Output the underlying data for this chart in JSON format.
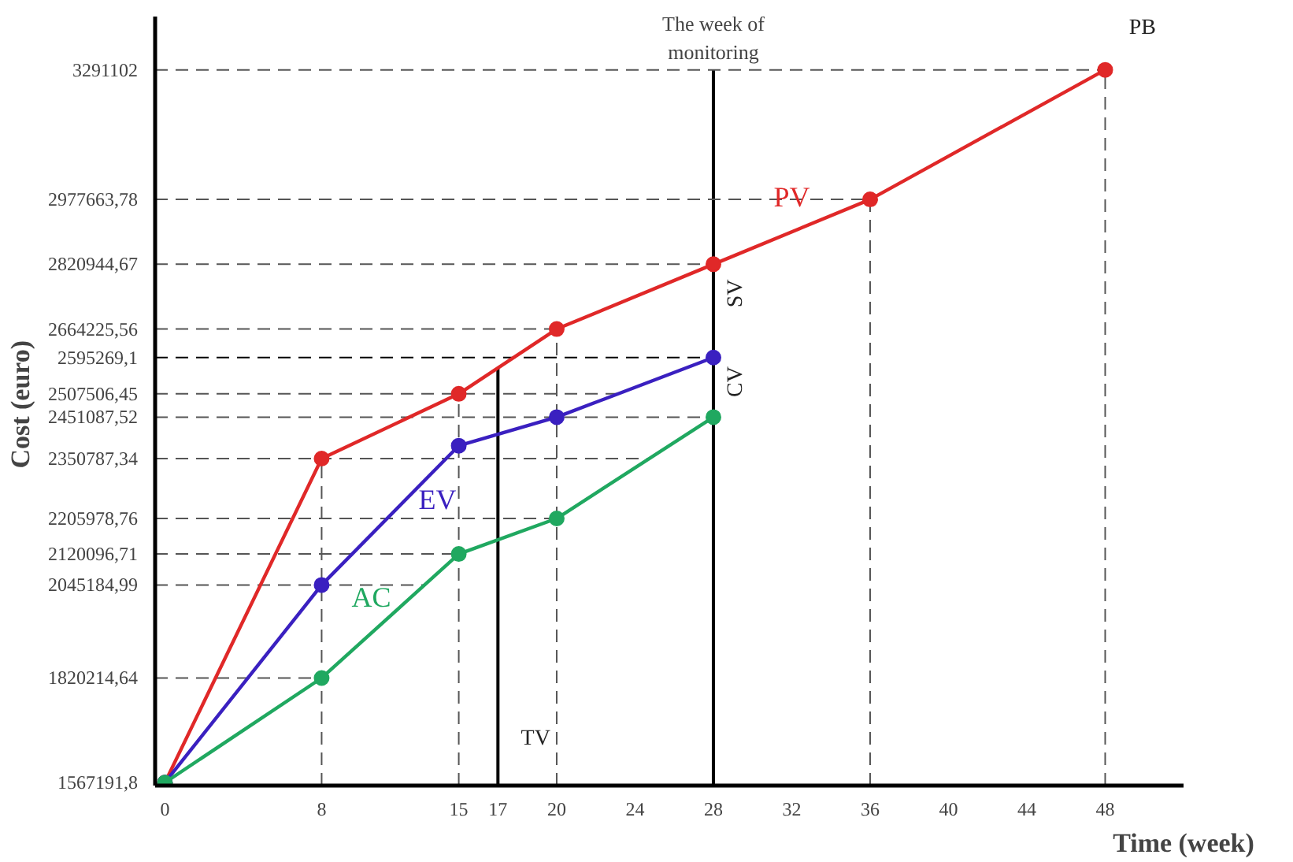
{
  "chart_data": {
    "type": "line",
    "xlabel": "Time (week)",
    "ylabel": "Cost  (euro)",
    "x": [
      0,
      8,
      15,
      20,
      28,
      36,
      48
    ],
    "series": [
      {
        "name": "PV",
        "color": "#e02828",
        "values": [
          1567191.8,
          2350787.34,
          2507506.45,
          2664225.56,
          2820944.67,
          2977663.78,
          3291102
        ]
      },
      {
        "name": "EV",
        "color": "#3a20c0",
        "x": [
          0,
          8,
          15,
          20,
          28
        ],
        "values": [
          1567191.8,
          2045184.99,
          2382000,
          2451087.52,
          2595269.1
        ]
      },
      {
        "name": "AC",
        "color": "#20a860",
        "x": [
          0,
          8,
          15,
          20,
          28
        ],
        "values": [
          1567191.8,
          1820214.64,
          2120096.71,
          2205978.76,
          2451087.52
        ]
      }
    ],
    "marker": "circle",
    "line_style": "solid",
    "grid": false,
    "xlim": [
      -0.5,
      52
    ],
    "ylim": [
      1560000,
      3420000
    ],
    "xticks": [
      0,
      8,
      15,
      17,
      20,
      24,
      28,
      32,
      36,
      40,
      44,
      48
    ],
    "yticks": [
      {
        "value": 1567191.8,
        "label": "1567191,8"
      },
      {
        "value": 1820214.64,
        "label": "1820214,64"
      },
      {
        "value": 2045184.99,
        "label": "2045184,99"
      },
      {
        "value": 2120096.71,
        "label": "2120096,71"
      },
      {
        "value": 2205978.76,
        "label": "2205978,76"
      },
      {
        "value": 2350787.34,
        "label": "2350787,34"
      },
      {
        "value": 2451087.52,
        "label": "2451087,52"
      },
      {
        "value": 2507506.45,
        "label": "2507506,45"
      },
      {
        "value": 2595269.1,
        "label": "2595269,1"
      },
      {
        "value": 2664225.56,
        "label": "2664225,56"
      },
      {
        "value": 2820944.67,
        "label": "2820944,67"
      },
      {
        "value": 2977663.78,
        "label": "2977663,78"
      },
      {
        "value": 3291102,
        "label": "3291102"
      }
    ],
    "ref_lines": [
      {
        "axis": "x",
        "value": 28,
        "label": "The week of\nmonitoring",
        "line_style": "solid",
        "color": "#000000"
      },
      {
        "axis": "x",
        "value": 17,
        "line_style": "solid",
        "color": "#000000"
      },
      {
        "axis": "x",
        "value": 8,
        "line_style": "dashed",
        "color": "#555555"
      },
      {
        "axis": "x",
        "value": 15,
        "line_style": "dashed",
        "color": "#555555"
      },
      {
        "axis": "x",
        "value": 20,
        "line_style": "dashed",
        "color": "#555555"
      },
      {
        "axis": "x",
        "value": 36,
        "line_style": "dashed",
        "color": "#555555"
      },
      {
        "axis": "x",
        "value": 48,
        "line_style": "dashed",
        "color": "#555555"
      },
      {
        "axis": "y",
        "value": 1820214.64,
        "line_style": "dashed",
        "color": "#555555"
      },
      {
        "axis": "y",
        "value": 2045184.99,
        "line_style": "dashed",
        "color": "#555555"
      },
      {
        "axis": "y",
        "value": 2120096.71,
        "line_style": "dashed",
        "color": "#555555"
      },
      {
        "axis": "y",
        "value": 2205978.76,
        "line_style": "dashed",
        "color": "#555555"
      },
      {
        "axis": "y",
        "value": 2350787.34,
        "line_style": "dashed",
        "color": "#555555"
      },
      {
        "axis": "y",
        "value": 2451087.52,
        "line_style": "dashed",
        "color": "#555555"
      },
      {
        "axis": "y",
        "value": 2507506.45,
        "line_style": "dashed",
        "color": "#555555"
      },
      {
        "axis": "y",
        "value": 2595269.1,
        "line_style": "dashed",
        "color": "#000000"
      },
      {
        "axis": "y",
        "value": 2664225.56,
        "line_style": "dashed",
        "color": "#555555"
      },
      {
        "axis": "y",
        "value": 2820944.67,
        "line_style": "dashed",
        "color": "#555555"
      },
      {
        "axis": "y",
        "value": 2977663.78,
        "line_style": "dashed",
        "color": "#555555"
      },
      {
        "axis": "y",
        "value": 3291102,
        "line_style": "dashed",
        "color": "#555555"
      }
    ],
    "annotations": [
      "SV",
      "CV",
      "TV",
      "PB"
    ]
  }
}
